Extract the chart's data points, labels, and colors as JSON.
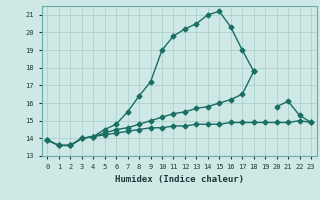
{
  "title": "",
  "xlabel": "Humidex (Indice chaleur)",
  "ylabel": "",
  "bg_color": "#cde8e5",
  "grid_color": "#a8cdc9",
  "line_color": "#1a6e64",
  "xlim": [
    -0.5,
    23.5
  ],
  "ylim": [
    13,
    21.5
  ],
  "xticks": [
    0,
    1,
    2,
    3,
    4,
    5,
    6,
    7,
    8,
    9,
    10,
    11,
    12,
    13,
    14,
    15,
    16,
    17,
    18,
    19,
    20,
    21,
    22,
    23
  ],
  "yticks": [
    13,
    14,
    15,
    16,
    17,
    18,
    19,
    20,
    21
  ],
  "series": [
    {
      "x": [
        0,
        1,
        2,
        3,
        4,
        5,
        6,
        7,
        8,
        9,
        10,
        11,
        12,
        13,
        14,
        15,
        16,
        17,
        18
      ],
      "y": [
        13.9,
        13.6,
        13.6,
        14.0,
        14.1,
        14.5,
        14.8,
        15.5,
        16.4,
        17.2,
        19.0,
        19.8,
        20.2,
        20.5,
        21.0,
        21.2,
        20.3,
        19.0,
        17.8
      ],
      "marker": "D",
      "markersize": 2.5,
      "linewidth": 1.0,
      "linestyle": "-"
    },
    {
      "x": [
        0,
        1,
        2,
        3,
        4,
        5,
        6,
        7,
        8,
        9,
        10,
        11,
        12,
        13,
        14,
        15,
        16,
        17,
        18,
        19,
        20,
        21,
        22,
        23
      ],
      "y": [
        13.9,
        13.6,
        13.6,
        14.0,
        14.1,
        14.3,
        14.5,
        14.6,
        14.8,
        15.0,
        15.2,
        15.4,
        15.5,
        15.7,
        15.8,
        16.0,
        16.2,
        16.5,
        17.8,
        null,
        15.8,
        16.1,
        15.3,
        14.9
      ],
      "marker": "D",
      "markersize": 2.5,
      "linewidth": 1.0,
      "linestyle": "-"
    },
    {
      "x": [
        0,
        1,
        2,
        3,
        4,
        5,
        6,
        7,
        8,
        9,
        10,
        11,
        12,
        13,
        14,
        15,
        16,
        17,
        18,
        19,
        20,
        21,
        22,
        23
      ],
      "y": [
        13.9,
        13.6,
        13.6,
        14.0,
        14.1,
        14.2,
        14.3,
        14.4,
        14.5,
        14.6,
        14.6,
        14.7,
        14.7,
        14.8,
        14.8,
        14.8,
        14.9,
        14.9,
        14.9,
        14.9,
        14.9,
        14.9,
        15.0,
        14.9
      ],
      "marker": "D",
      "markersize": 2.5,
      "linewidth": 1.0,
      "linestyle": "-"
    }
  ]
}
